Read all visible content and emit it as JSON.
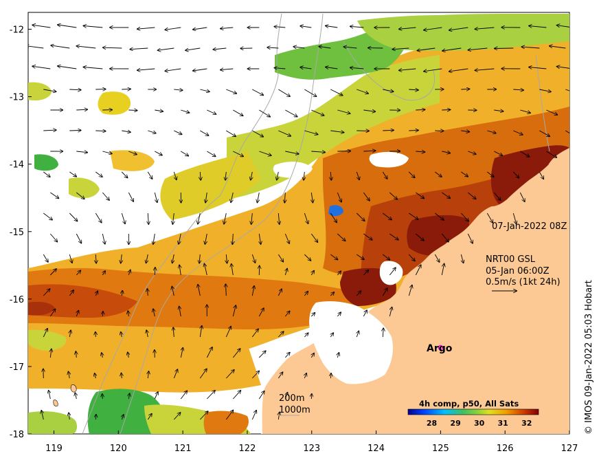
{
  "map": {
    "lon_range": [
      118.6,
      127.0
    ],
    "lat_range": [
      -18.0,
      -11.75
    ],
    "lon_ticks": [
      {
        "value": 119,
        "label": "119"
      },
      {
        "value": 120,
        "label": "120"
      },
      {
        "value": 121,
        "label": "121"
      },
      {
        "value": 122,
        "label": "122"
      },
      {
        "value": 123,
        "label": "123"
      },
      {
        "value": 124,
        "label": "124"
      },
      {
        "value": 125,
        "label": "125"
      },
      {
        "value": 126,
        "label": "126"
      },
      {
        "value": 127,
        "label": "127"
      }
    ],
    "lat_ticks": [
      {
        "value": -12,
        "label": "-12"
      },
      {
        "value": -13,
        "label": "-13"
      },
      {
        "value": -14,
        "label": "-14"
      },
      {
        "value": -15,
        "label": "-15"
      },
      {
        "value": -16,
        "label": "-16"
      },
      {
        "value": -17,
        "label": "-17"
      },
      {
        "value": -18,
        "label": "-18"
      }
    ],
    "date_label": "07-Jan-2022 08Z",
    "current_info": {
      "line1": "NRT00 GSL",
      "line2": "05-Jan 06:00Z",
      "line3": "0.5m/s (1kt 24h)"
    },
    "argo_label": "Argo",
    "argo_position": {
      "lon": 125.0,
      "lat": -16.72
    },
    "contours": {
      "shallow": "200m",
      "deep": "1000m"
    },
    "colorbar": {
      "title": "4h comp, p50, All Sats",
      "range": [
        27.0,
        32.5
      ],
      "ticks": [
        {
          "value": 28,
          "label": "28"
        },
        {
          "value": 29,
          "label": "29"
        },
        {
          "value": 30,
          "label": "30"
        },
        {
          "value": 31,
          "label": "31"
        },
        {
          "value": 32,
          "label": "32"
        }
      ]
    },
    "credit": "© IMOS 09-Jan-2022 05:03 Hobart",
    "colors": {
      "land": "#fcc995",
      "cloud": "#ffffff",
      "argo_marker": "#ff00ff",
      "bathy_line": "#a8a8a8",
      "hot": "#8a1a0a",
      "warm": "#e6a000",
      "cool": "#90d040"
    }
  }
}
